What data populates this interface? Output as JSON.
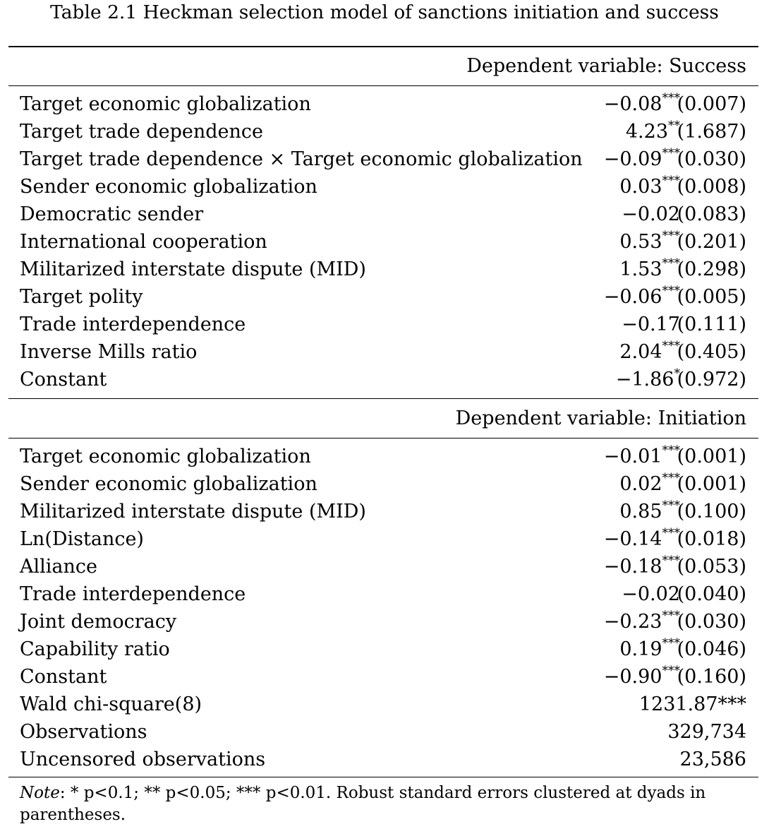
{
  "caption": "Table 2.1 Heckman selection model of sanctions initiation and success",
  "panel1": {
    "header": "Dependent variable: Success",
    "rows": [
      {
        "label": "Target economic globalization",
        "coef": "−0.08",
        "stars": "***",
        "se": "(0.007)"
      },
      {
        "label": "Target trade dependence",
        "coef": "4.23",
        "stars": "**",
        "se": "(1.687)"
      },
      {
        "label": "Target trade dependence × Target economic globalization",
        "coef": "−0.09",
        "stars": "***",
        "se": "(0.030)"
      },
      {
        "label": "Sender economic globalization",
        "coef": "0.03",
        "stars": "***",
        "se": "(0.008)"
      },
      {
        "label": "Democratic sender",
        "coef": "−0.02",
        "stars": "",
        "se": "(0.083)"
      },
      {
        "label": "International cooperation",
        "coef": "0.53",
        "stars": "***",
        "se": "(0.201)"
      },
      {
        "label": "Militarized interstate dispute (MID)",
        "coef": "1.53",
        "stars": "***",
        "se": "(0.298)"
      },
      {
        "label": "Target polity",
        "coef": "−0.06",
        "stars": "***",
        "se": "(0.005)"
      },
      {
        "label": "Trade interdependence",
        "coef": "−0.17",
        "stars": "",
        "se": "(0.111)"
      },
      {
        "label": "Inverse Mills ratio",
        "coef": "2.04",
        "stars": "***",
        "se": "(0.405)"
      },
      {
        "label": "Constant",
        "coef": "−1.86",
        "stars": "*",
        "se": "(0.972)"
      }
    ]
  },
  "panel2": {
    "header": "Dependent variable: Initiation",
    "rows": [
      {
        "label": "Target economic globalization",
        "coef": "−0.01",
        "stars": "***",
        "se": "(0.001)"
      },
      {
        "label": "Sender economic globalization",
        "coef": "0.02",
        "stars": "***",
        "se": "(0.001)"
      },
      {
        "label": "Militarized interstate dispute (MID)",
        "coef": "0.85",
        "stars": "***",
        "se": "(0.100)"
      },
      {
        "label": "Ln(Distance)",
        "coef": "−0.14",
        "stars": "***",
        "se": "(0.018)"
      },
      {
        "label": "Alliance",
        "coef": "−0.18",
        "stars": "***",
        "se": "(0.053)"
      },
      {
        "label": "Trade interdependence",
        "coef": "−0.02",
        "stars": "",
        "se": "(0.040)"
      },
      {
        "label": "Joint democracy",
        "coef": "−0.23",
        "stars": "***",
        "se": "(0.030)"
      },
      {
        "label": "Capability ratio",
        "coef": "0.19",
        "stars": "***",
        "se": "(0.046)"
      },
      {
        "label": "Constant",
        "coef": "−0.90",
        "stars": "***",
        "se": "(0.160)"
      }
    ],
    "stats": [
      {
        "label": "Wald chi-square(8)",
        "value": "1231.87***"
      },
      {
        "label": "Observations",
        "value": "329,734"
      },
      {
        "label": "Uncensored observations",
        "value": "23,586"
      }
    ]
  },
  "note": {
    "lead": "Note",
    "text": ": * p<0.1; ** p<0.05; *** p<0.01. Robust standard errors clustered at dyads in parentheses."
  }
}
